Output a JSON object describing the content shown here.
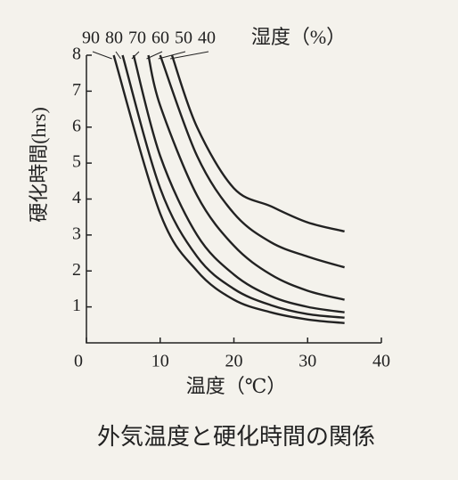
{
  "chart_data": {
    "type": "line",
    "title": "外気温度と硬化時間の関係",
    "xlabel": "温度（℃）",
    "ylabel": "硬化時間(hrs)",
    "legend_title": "湿度（%）",
    "xlim": [
      0,
      40
    ],
    "ylim": [
      0,
      8
    ],
    "xticks": [
      0,
      10,
      20,
      30,
      40
    ],
    "yticks": [
      1,
      2,
      3,
      4,
      5,
      6,
      7,
      8
    ],
    "color": "#222222",
    "series": [
      {
        "name": "90",
        "x": [
          3.7,
          10,
          15,
          20,
          25,
          30,
          35
        ],
        "values": [
          8,
          3.6,
          2.0,
          1.2,
          0.85,
          0.65,
          0.55
        ]
      },
      {
        "name": "80",
        "x": [
          4.9,
          10,
          15,
          20,
          25,
          30,
          35
        ],
        "values": [
          8,
          4.3,
          2.4,
          1.5,
          1.05,
          0.8,
          0.7
        ]
      },
      {
        "name": "70",
        "x": [
          6.4,
          10,
          15,
          20,
          25,
          30,
          35
        ],
        "values": [
          8,
          5.2,
          3.0,
          1.9,
          1.3,
          1.0,
          0.85
        ]
      },
      {
        "name": "60",
        "x": [
          8.4,
          10,
          15,
          20,
          25,
          30,
          35
        ],
        "values": [
          8,
          6.6,
          4.1,
          2.7,
          1.9,
          1.45,
          1.2
        ]
      },
      {
        "name": "50",
        "x": [
          10,
          15,
          20,
          25,
          30,
          35
        ],
        "values": [
          8,
          5.2,
          3.6,
          2.8,
          2.4,
          2.1
        ]
      },
      {
        "name": "40",
        "x": [
          11.6,
          15,
          20,
          25,
          30,
          35
        ],
        "values": [
          8,
          6.0,
          4.3,
          3.8,
          3.35,
          3.1
        ]
      }
    ]
  }
}
